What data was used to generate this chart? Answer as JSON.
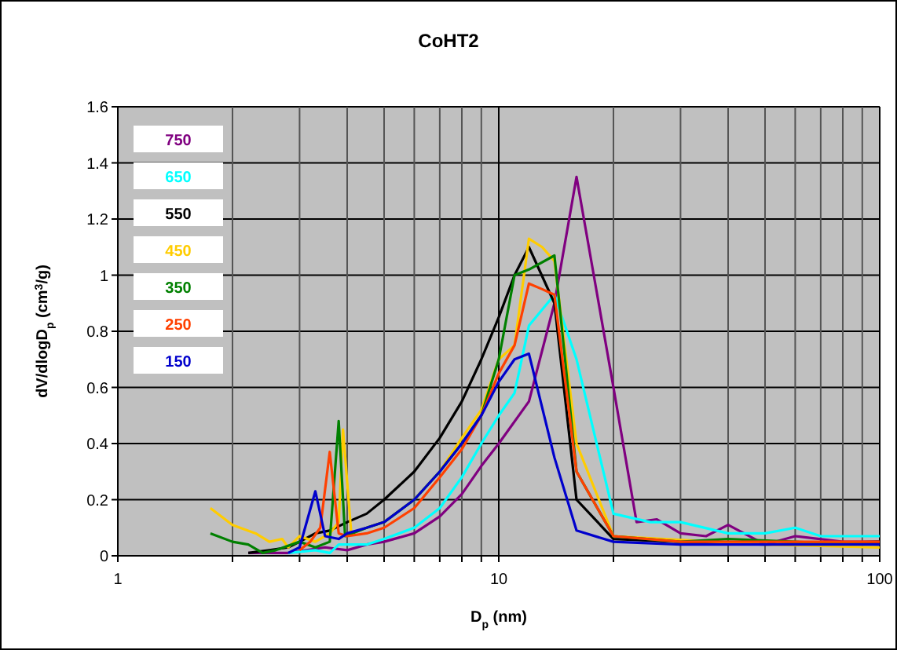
{
  "chart_data": {
    "type": "line",
    "title": "CoHT2",
    "xlabel": "D$_{p}$ (nm)",
    "ylabel": "dV/dlogD$_{p}$ (cm$^{3}$/g)",
    "log": "x",
    "grid": true,
    "legend": "top left",
    "marker": "none",
    "line_style": "solid",
    "xlim": [
      1,
      100
    ],
    "ylim": [
      0,
      1.6
    ],
    "xticks": [
      1,
      {
        "value": 2,
        "label": null
      },
      {
        "value": 3,
        "label": null
      },
      {
        "value": 4,
        "label": null
      },
      {
        "value": 5,
        "label": null
      },
      {
        "value": 6,
        "label": null
      },
      {
        "value": 7,
        "label": null
      },
      {
        "value": 8,
        "label": null
      },
      {
        "value": 9,
        "label": null
      },
      10,
      {
        "value": 20,
        "label": null
      },
      {
        "value": 30,
        "label": null
      },
      {
        "value": 40,
        "label": null
      },
      {
        "value": 50,
        "label": null
      },
      {
        "value": 60,
        "label": null
      },
      {
        "value": 70,
        "label": null
      },
      {
        "value": 80,
        "label": null
      },
      {
        "value": 90,
        "label": null
      },
      100
    ],
    "yticks": [
      0,
      0.2,
      0.4,
      0.6,
      0.8,
      1,
      1.2,
      1.4,
      1.6
    ],
    "series": [
      {
        "name": "750",
        "color": "#800080",
        "x": [
          2.2,
          2.8,
          3.5,
          4,
          4.5,
          5,
          6,
          7,
          8,
          9,
          10,
          12,
          14,
          16,
          20,
          23,
          26,
          30,
          35,
          40,
          50,
          60,
          80,
          100
        ],
        "values": [
          0.01,
          0.01,
          0.03,
          0.02,
          0.04,
          0.05,
          0.08,
          0.14,
          0.22,
          0.32,
          0.4,
          0.55,
          0.9,
          1.35,
          0.6,
          0.12,
          0.13,
          0.08,
          0.07,
          0.11,
          0.04,
          0.07,
          0.05,
          0.05
        ]
      },
      {
        "name": "650",
        "color": "#00ffff",
        "x": [
          2.8,
          3.3,
          3.6,
          3.8,
          4.5,
          5,
          6,
          7,
          8,
          9,
          10,
          11,
          12,
          14,
          16,
          20,
          25,
          30,
          40,
          50,
          60,
          70,
          100
        ],
        "values": [
          0.01,
          0.02,
          0.01,
          0.04,
          0.04,
          0.06,
          0.1,
          0.17,
          0.28,
          0.4,
          0.5,
          0.58,
          0.82,
          0.93,
          0.7,
          0.15,
          0.12,
          0.12,
          0.08,
          0.08,
          0.1,
          0.07,
          0.07
        ]
      },
      {
        "name": "550",
        "color": "#000000",
        "x": [
          2.2,
          2.5,
          2.8,
          3,
          3.3,
          3.6,
          4,
          4.5,
          5,
          6,
          7,
          8,
          9,
          10,
          11,
          12,
          14,
          16,
          20,
          30,
          50,
          100
        ],
        "values": [
          0.01,
          0.02,
          0.03,
          0.05,
          0.08,
          0.09,
          0.12,
          0.15,
          0.2,
          0.3,
          0.42,
          0.55,
          0.7,
          0.85,
          1.0,
          1.1,
          0.9,
          0.2,
          0.06,
          0.05,
          0.04,
          0.05
        ]
      },
      {
        "name": "450",
        "color": "#ffcc00",
        "x": [
          1.75,
          2,
          2.3,
          2.5,
          2.7,
          2.8,
          3,
          3.3,
          3.6,
          3.8,
          3.9,
          4.1,
          4.5,
          5,
          6,
          7,
          8,
          9,
          10,
          11,
          12,
          13,
          14,
          16,
          20,
          50,
          100
        ],
        "values": [
          0.17,
          0.11,
          0.08,
          0.05,
          0.06,
          0.03,
          0.07,
          0.05,
          0.08,
          0.12,
          0.45,
          0.08,
          0.1,
          0.12,
          0.2,
          0.3,
          0.42,
          0.52,
          0.7,
          0.75,
          1.13,
          1.1,
          1.05,
          0.4,
          0.07,
          0.04,
          0.03
        ]
      },
      {
        "name": "350",
        "color": "#008000",
        "x": [
          1.75,
          2,
          2.2,
          2.4,
          2.6,
          3,
          3.3,
          3.6,
          3.8,
          3.95,
          4.5,
          5,
          6,
          7,
          8,
          9,
          10,
          11,
          12,
          14,
          16,
          20,
          30,
          40,
          60,
          100
        ],
        "values": [
          0.08,
          0.05,
          0.04,
          0.01,
          0.02,
          0.05,
          0.03,
          0.05,
          0.48,
          0.07,
          0.1,
          0.12,
          0.2,
          0.3,
          0.4,
          0.5,
          0.7,
          1.0,
          1.02,
          1.07,
          0.3,
          0.07,
          0.05,
          0.06,
          0.05,
          0.04
        ]
      },
      {
        "name": "250",
        "color": "#ff4000",
        "x": [
          3,
          3.2,
          3.4,
          3.6,
          3.8,
          4,
          4.5,
          5,
          6,
          7,
          8,
          9,
          10,
          11,
          12,
          13,
          14,
          16,
          20,
          30,
          50,
          100
        ],
        "values": [
          0.02,
          0.05,
          0.1,
          0.37,
          0.08,
          0.07,
          0.08,
          0.1,
          0.17,
          0.28,
          0.38,
          0.5,
          0.65,
          0.75,
          0.97,
          0.95,
          0.93,
          0.3,
          0.07,
          0.05,
          0.05,
          0.05
        ]
      },
      {
        "name": "150",
        "color": "#0000cc",
        "x": [
          2.8,
          3,
          3.3,
          3.5,
          3.8,
          4,
          4.5,
          5,
          6,
          7,
          8,
          9,
          10,
          11,
          12,
          14,
          16,
          20,
          30,
          50,
          100
        ],
        "values": [
          0.01,
          0.03,
          0.23,
          0.07,
          0.06,
          0.08,
          0.1,
          0.12,
          0.2,
          0.3,
          0.4,
          0.5,
          0.62,
          0.7,
          0.72,
          0.35,
          0.09,
          0.05,
          0.04,
          0.04,
          0.04
        ]
      }
    ]
  }
}
